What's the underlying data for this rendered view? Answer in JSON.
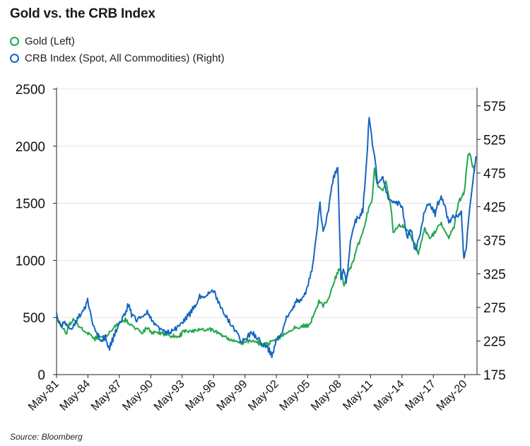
{
  "title": "Gold vs. the CRB Index",
  "legend": [
    {
      "label": "Gold (Left)",
      "color": "#21a84a"
    },
    {
      "label": "CRB Index (Spot, All Commodities) (Right)",
      "color": "#1565c0"
    }
  ],
  "source": "Source: Bloomberg",
  "chart_data": {
    "type": "line",
    "x_tick_labels": [
      "May-81",
      "May-84",
      "May-87",
      "May-90",
      "May-93",
      "May-96",
      "May-99",
      "May-02",
      "May-05",
      "May-08",
      "May-11",
      "May-14",
      "May-17",
      "May-20"
    ],
    "x_range": [
      1981.33,
      2021.5
    ],
    "y_left": {
      "label": "",
      "ticks": [
        0,
        500,
        1000,
        1500,
        2000,
        2500
      ],
      "range": [
        0,
        2500
      ]
    },
    "y_right": {
      "label": "",
      "ticks": [
        175,
        225,
        275,
        325,
        375,
        425,
        475,
        525,
        575
      ],
      "range": [
        175,
        600
      ]
    },
    "grid": "horizontal",
    "legend_position": "top-left",
    "series": [
      {
        "name": "Gold (Left)",
        "axis": "left",
        "color": "#21a84a",
        "x": [
          1981.33,
          1981.8,
          1982.3,
          1982.5,
          1983.0,
          1983.5,
          1984.0,
          1984.5,
          1985.0,
          1985.3,
          1985.8,
          1986.3,
          1986.8,
          1987.5,
          1987.9,
          1988.5,
          1989.0,
          1989.5,
          1990.0,
          1990.5,
          1991.0,
          1991.5,
          1992.0,
          1992.5,
          1993.0,
          1993.5,
          1994.0,
          1995.0,
          1996.0,
          1996.5,
          1997.0,
          1997.5,
          1998.0,
          1998.5,
          1999.0,
          1999.5,
          1999.8,
          2000.5,
          2001.0,
          2001.5,
          2002.0,
          2002.5,
          2003.0,
          2003.5,
          2004.0,
          2004.5,
          2005.0,
          2005.5,
          2006.0,
          2006.4,
          2006.8,
          2007.3,
          2007.8,
          2008.2,
          2008.5,
          2008.8,
          2009.2,
          2009.7,
          2010.0,
          2010.5,
          2011.0,
          2011.5,
          2011.7,
          2012.0,
          2012.5,
          2012.8,
          2013.3,
          2013.5,
          2014.0,
          2014.5,
          2015.0,
          2015.5,
          2015.9,
          2016.5,
          2017.0,
          2017.5,
          2018.0,
          2018.5,
          2018.8,
          2019.3,
          2019.7,
          2020.0,
          2020.3,
          2020.6,
          2020.8,
          2021.0,
          2021.3
        ],
        "values": [
          480,
          430,
          350,
          440,
          480,
          410,
          380,
          360,
          310,
          330,
          330,
          350,
          420,
          460,
          480,
          430,
          400,
          370,
          410,
          360,
          370,
          360,
          350,
          340,
          330,
          380,
          385,
          385,
          400,
          380,
          350,
          330,
          300,
          290,
          280,
          290,
          300,
          280,
          270,
          270,
          300,
          320,
          350,
          370,
          410,
          400,
          430,
          430,
          550,
          640,
          600,
          660,
          800,
          900,
          920,
          770,
          900,
          1000,
          1100,
          1220,
          1400,
          1550,
          1800,
          1650,
          1600,
          1700,
          1450,
          1250,
          1300,
          1300,
          1250,
          1150,
          1060,
          1280,
          1200,
          1250,
          1330,
          1250,
          1200,
          1300,
          1500,
          1550,
          1600,
          1900,
          1950,
          1850,
          1780
        ]
      },
      {
        "name": "CRB Index (Spot, All Commodities) (Right)",
        "axis": "right",
        "color": "#1565c0",
        "x": [
          1981.33,
          1981.7,
          1982.2,
          1982.8,
          1983.5,
          1984.0,
          1984.3,
          1984.8,
          1985.5,
          1986.0,
          1986.4,
          1986.8,
          1987.3,
          1987.8,
          1988.2,
          1988.5,
          1989.0,
          1989.5,
          1990.0,
          1990.5,
          1991.0,
          1991.5,
          1992.0,
          1992.5,
          1993.0,
          1993.5,
          1994.0,
          1994.5,
          1995.0,
          1995.5,
          1996.0,
          1996.3,
          1996.6,
          1997.0,
          1997.5,
          1998.0,
          1998.5,
          1999.0,
          1999.5,
          2000.0,
          2000.5,
          2001.0,
          2001.5,
          2001.9,
          2002.3,
          2002.8,
          2003.3,
          2003.8,
          2004.2,
          2004.8,
          2005.2,
          2005.8,
          2006.2,
          2006.5,
          2006.8,
          2007.3,
          2007.8,
          2008.2,
          2008.5,
          2008.8,
          2009.0,
          2009.4,
          2009.8,
          2010.2,
          2010.6,
          2010.9,
          2011.2,
          2011.5,
          2011.8,
          2012.0,
          2012.5,
          2013.0,
          2013.5,
          2014.0,
          2014.4,
          2014.8,
          2015.2,
          2015.6,
          2016.0,
          2016.5,
          2017.0,
          2017.5,
          2018.0,
          2018.4,
          2018.8,
          2019.2,
          2019.7,
          2020.0,
          2020.25,
          2020.5,
          2020.8,
          2021.1,
          2021.4
        ],
        "values": [
          265,
          248,
          252,
          242,
          262,
          272,
          285,
          250,
          228,
          230,
          215,
          232,
          250,
          262,
          280,
          265,
          255,
          262,
          270,
          252,
          245,
          240,
          238,
          242,
          248,
          255,
          265,
          275,
          290,
          292,
          297,
          300,
          290,
          275,
          262,
          250,
          238,
          225,
          230,
          238,
          230,
          220,
          215,
          205,
          225,
          235,
          258,
          270,
          285,
          288,
          300,
          335,
          390,
          430,
          385,
          420,
          470,
          485,
          320,
          330,
          310,
          370,
          400,
          410,
          420,
          480,
          560,
          520,
          490,
          460,
          470,
          440,
          430,
          430,
          420,
          380,
          390,
          360,
          380,
          420,
          430,
          415,
          440,
          430,
          400,
          410,
          410,
          420,
          345,
          370,
          420,
          460,
          500
        ]
      }
    ]
  }
}
